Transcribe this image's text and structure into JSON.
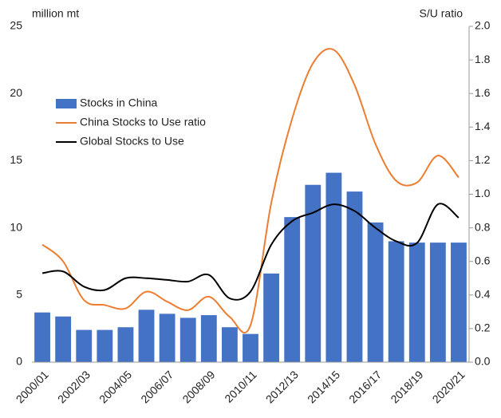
{
  "chart_data": {
    "type": "bar-line",
    "y_label": "million mt",
    "y2_label": "S/U ratio",
    "categories": [
      "2000/01",
      null,
      "2002/03",
      null,
      "2004/05",
      null,
      "2006/07",
      null,
      "2008/09",
      null,
      "2010/11",
      null,
      "2012/13",
      null,
      "2014/15",
      null,
      "2016/17",
      null,
      "2018/19",
      null,
      "2020/21"
    ],
    "series": [
      {
        "name": "Stocks in China",
        "type": "bar",
        "color": "#4472c4",
        "axis": "y",
        "values": [
          3.7,
          3.4,
          2.4,
          2.4,
          2.6,
          3.9,
          3.6,
          3.3,
          3.5,
          2.6,
          2.1,
          6.6,
          10.8,
          13.2,
          14.1,
          12.7,
          10.4,
          9.0,
          8.9,
          8.9,
          8.9
        ]
      },
      {
        "name": "China Stocks to Use ratio",
        "type": "line",
        "color": "#ed7d31",
        "axis": "y2",
        "values": [
          0.7,
          0.6,
          0.37,
          0.34,
          0.32,
          0.42,
          0.36,
          0.31,
          0.39,
          0.27,
          0.22,
          0.95,
          1.45,
          1.78,
          1.86,
          1.65,
          1.3,
          1.08,
          1.07,
          1.23,
          1.1
        ]
      },
      {
        "name": "Global Stocks to Use",
        "type": "line",
        "color": "#000000",
        "axis": "y2",
        "values": [
          0.53,
          0.54,
          0.45,
          0.43,
          0.5,
          0.5,
          0.49,
          0.48,
          0.52,
          0.38,
          0.42,
          0.7,
          0.84,
          0.89,
          0.94,
          0.9,
          0.8,
          0.72,
          0.71,
          0.94,
          0.86
        ]
      }
    ],
    "ylim": [
      0,
      25
    ],
    "yticks": [
      0,
      5,
      10,
      15,
      20,
      25
    ],
    "y2lim": [
      0,
      2
    ],
    "y2ticks": [
      {
        "value": 0,
        "label": "0.0"
      },
      0.2,
      0.4,
      0.6,
      0.8,
      {
        "value": 1,
        "label": "1.0"
      },
      1.2,
      1.4,
      1.6,
      1.8,
      {
        "value": 2,
        "label": "2.0"
      }
    ],
    "legend": "upper left"
  }
}
